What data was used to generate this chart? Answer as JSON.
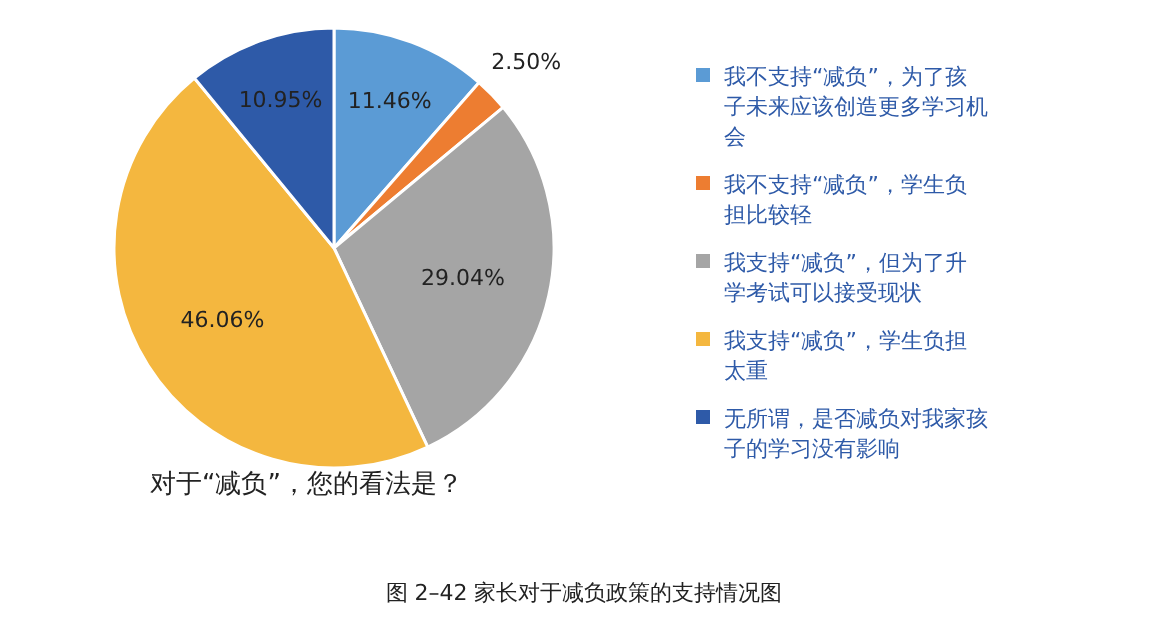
{
  "chart_data": {
    "type": "pie",
    "title": "对于“减负”，您的看法是？",
    "categories": [
      "我不支持“减负”，为了孩子未来应该创造更多学习机会",
      "我不支持“减负”，学生负担比较轻",
      "我支持“减负”，但为了升学考试可以接受现状",
      "我支持“减负”，学生负担太重",
      "无所谓，是否减负对我家孩子的学习没有影响"
    ],
    "values": [
      11.46,
      2.5,
      29.04,
      46.06,
      10.95
    ],
    "value_labels": [
      "11.46%",
      "2.50%",
      "29.04%",
      "46.06%",
      "10.95%"
    ],
    "colors": [
      "#5b9bd5",
      "#ed7d31",
      "#a5a5a5",
      "#f4b73f",
      "#2e5aa8"
    ],
    "legend": "right",
    "annotations": [
      "图 2–42   家长对于减负政策的支持情况图"
    ]
  }
}
